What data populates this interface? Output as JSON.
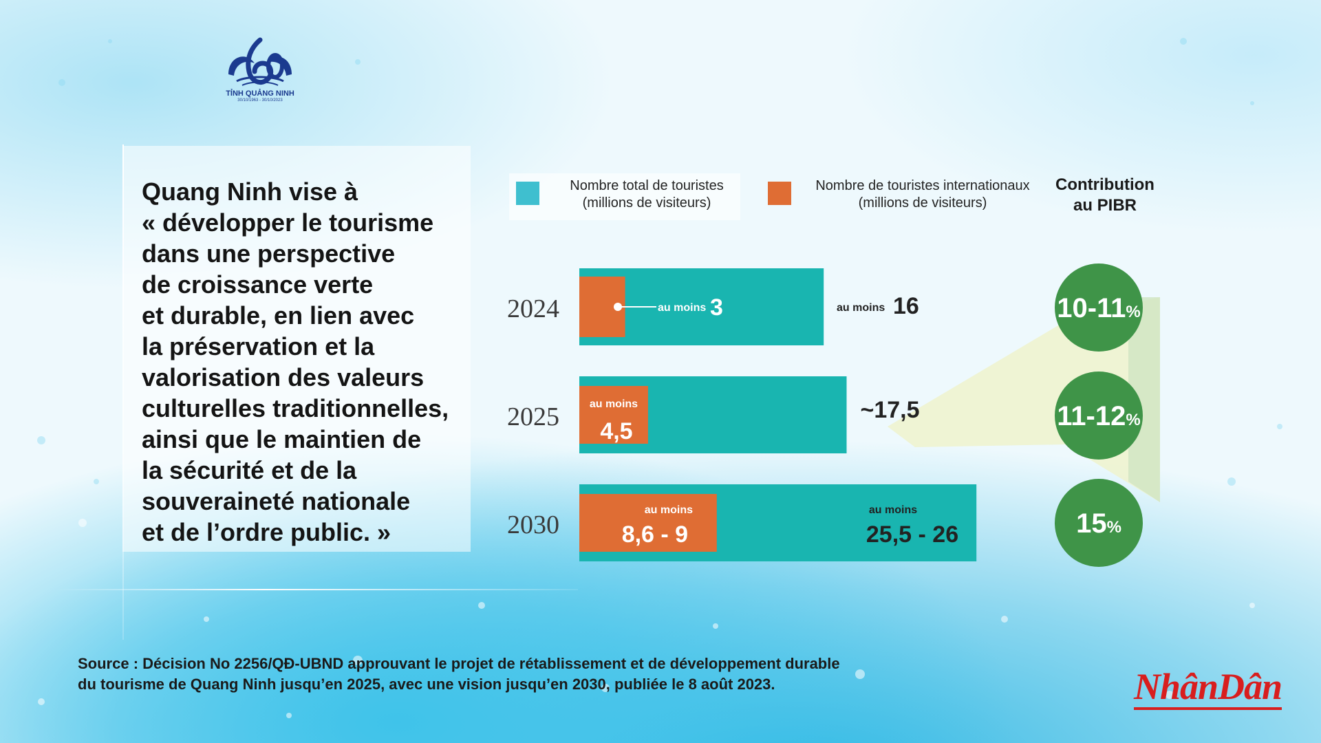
{
  "logo": {
    "name": "TỈNH QUẢNG NINH",
    "dates": "30/10/1963 - 30/10/2023"
  },
  "quote": "Quang Ninh vise à « développer le tourisme dans une perspective de croissance verte et durable, en lien avec la préservation et la valorisation des valeurs culturelles traditionnelles, ainsi que le maintien de la sécurité et de la souveraineté nationale et de l’ordre public. »",
  "quote_lines": [
    "Quang Ninh vise à",
    "« développer le tourisme",
    "dans une perspective",
    "de croissance verte",
    "et durable, en lien avec",
    "la préservation et la",
    "valorisation des valeurs",
    "culturelles traditionnelles,",
    "ainsi que le maintien de",
    "la sécurité et de la",
    "souveraineté nationale",
    "et de l’ordre public. »"
  ],
  "colors": {
    "total": "#19b5b0",
    "international": "#df6d34",
    "contribution": "#3f9448",
    "brand": "#d81e1e"
  },
  "chart_data": {
    "type": "bar",
    "orientation": "horizontal",
    "categories": [
      "2024",
      "2025",
      "2030"
    ],
    "series": [
      {
        "name": "Nombre total de touristes (millions de visiteurs)",
        "values": [
          16,
          17.5,
          26
        ],
        "labels": [
          "16",
          "~17,5",
          "25,5 - 26"
        ],
        "prefix": [
          "au moins",
          "",
          "au moins"
        ]
      },
      {
        "name": "Nombre de touristes internationaux (millions de visiteurs)",
        "values": [
          3,
          4.5,
          9
        ],
        "labels": [
          "3",
          "4,5",
          "8,6 - 9"
        ],
        "prefix": [
          "au moins",
          "au moins",
          "au moins"
        ]
      }
    ],
    "contribution": {
      "title": "Contribution au PIBR",
      "labels": [
        "10-11",
        "11-12",
        "15"
      ],
      "unit": "%"
    },
    "legend": {
      "total_line1": "Nombre total de touristes",
      "total_line2": "(millions de visiteurs)",
      "intl_line1": "Nombre de touristes internationaux",
      "intl_line2": "(millions de visiteurs)",
      "contrib_line1": "Contribution",
      "contrib_line2": "au PIBR"
    }
  },
  "source_line1": "Source : Décision No 2256/QĐ-UBND approuvant le projet de rétablissement et de développement durable",
  "source_line2": "du tourisme de Quang Ninh jusqu’en 2025, avec une vision jusqu’en 2030, publiée le 8 août 2023.",
  "brand": "NhânDân"
}
